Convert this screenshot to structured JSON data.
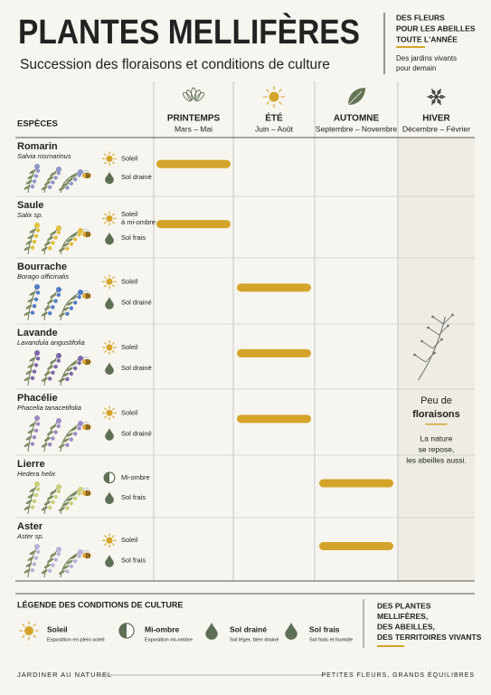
{
  "header": {
    "title": "PLANTES MELLIFÈRES",
    "subtitle": "Succession des floraisons et conditions de culture",
    "tagline": [
      "DES FLEURS",
      "POUR LES ABEILLES",
      "TOUTE L'ANNÉE"
    ],
    "note": [
      "Des jardins vivants",
      "pour demain"
    ]
  },
  "table": {
    "species_header": "ESPÈCES",
    "seasons": [
      {
        "name": "PRINTEMPS",
        "months": "Mars – Mai"
      },
      {
        "name": "ÉTÉ",
        "months": "Juin – Août"
      },
      {
        "name": "AUTOMNE",
        "months": "Septembre – Novembre"
      },
      {
        "name": "HIVER",
        "months": "Décembre – Février"
      }
    ],
    "rows": [
      {
        "name": "Romarin",
        "latin": "Salvia rosmarinus",
        "exposure": [
          "Soleil"
        ],
        "exposure_icon": "sun",
        "soil": "Sol drainé",
        "season": 0
      },
      {
        "name": "Saule",
        "latin": "Salix sp.",
        "exposure": [
          "Soleil",
          "à mi-ombre"
        ],
        "exposure_icon": "sun",
        "soil": "Sol frais",
        "season": 0
      },
      {
        "name": "Bourrache",
        "latin": "Borago officinalis",
        "exposure": [
          "Soleil"
        ],
        "exposure_icon": "sun",
        "soil": "Sol drainé",
        "season": 1
      },
      {
        "name": "Lavande",
        "latin": "Lavandula angustifolia",
        "exposure": [
          "Soleil"
        ],
        "exposure_icon": "sun",
        "soil": "Sol drainé",
        "season": 1
      },
      {
        "name": "Phacélie",
        "latin": "Phacelia tanacetifolia",
        "exposure": [
          "Soleil"
        ],
        "exposure_icon": "sun",
        "soil": "Sol drainé",
        "season": 1
      },
      {
        "name": "Lierre",
        "latin": "Hedera helix",
        "exposure": [
          "Mi-ombre"
        ],
        "exposure_icon": "half",
        "soil": "Sol frais",
        "season": 2
      },
      {
        "name": "Aster",
        "latin": "Aster sp.",
        "exposure": [
          "Soleil"
        ],
        "exposure_icon": "sun",
        "soil": "Sol frais",
        "season": 2
      }
    ],
    "winter": {
      "title": [
        "Peu de",
        "floraisons"
      ],
      "text": [
        "La nature",
        "se repose,",
        "les abeilles aussi."
      ]
    }
  },
  "legend": {
    "title": "LÉGENDE DES CONDITIONS DE CULTURE",
    "items": [
      {
        "icon": "sun",
        "label": "Soleil",
        "description": "Exposition en plein soleil"
      },
      {
        "icon": "half",
        "label": "Mi-ombre",
        "description": "Exposition mi-ombre"
      },
      {
        "icon": "drop",
        "label": "Sol drainé",
        "description": "Sol léger, bien drainé"
      },
      {
        "icon": "drop",
        "label": "Sol frais",
        "description": "Sol frais et humide"
      }
    ],
    "side": [
      "DES PLANTES",
      "MELLIFÈRES,",
      "DES ABEILLES,",
      "DES TERRITOIRES VIVANTS"
    ]
  },
  "footer": {
    "left": "JARDINER AU NATUREL",
    "right": "PETITES FLEURS, GRANDS ÉQUILIBRES"
  }
}
